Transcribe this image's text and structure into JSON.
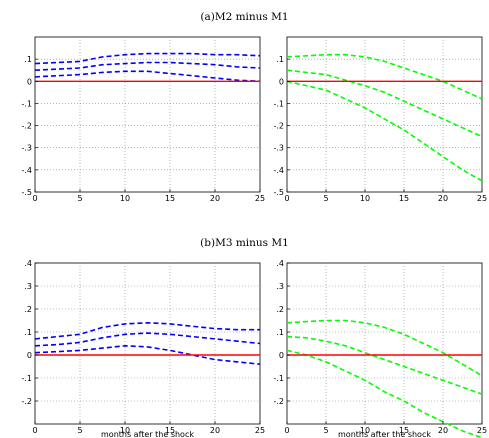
{
  "figure": {
    "panel_titles": [
      "(a)M2  minus  M1",
      "(b)M3  minus  M1"
    ],
    "xlabel": "months after the shock"
  },
  "chart_data": [
    {
      "type": "line",
      "panel": "(a)M2  minus  M1",
      "position": "left",
      "x": [
        0,
        2.5,
        5,
        7.5,
        10,
        12.5,
        15,
        17.5,
        20,
        22.5,
        25
      ],
      "xlim": [
        0,
        25
      ],
      "ylim": [
        -0.5,
        0.2
      ],
      "xticks": [
        0,
        5,
        10,
        15,
        20,
        25
      ],
      "yticks": [
        -0.5,
        -0.4,
        -0.3,
        -0.2,
        -0.1,
        0,
        0.1
      ],
      "grid": true,
      "xlabel": "",
      "series": [
        {
          "values": [
            0.08,
            0.085,
            0.09,
            0.11,
            0.12,
            0.125,
            0.125,
            0.125,
            0.12,
            0.12,
            0.115
          ],
          "color": "#0000ff",
          "style": "dashed"
        },
        {
          "values": [
            0.05,
            0.055,
            0.06,
            0.075,
            0.08,
            0.085,
            0.085,
            0.08,
            0.075,
            0.065,
            0.06
          ],
          "color": "#0000ff",
          "style": "dashed"
        },
        {
          "values": [
            0.02,
            0.025,
            0.03,
            0.04,
            0.045,
            0.045,
            0.035,
            0.025,
            0.015,
            0.005,
            0.0
          ],
          "color": "#0000ff",
          "style": "dashed"
        },
        {
          "values": [
            0,
            0,
            0,
            0,
            0,
            0,
            0,
            0,
            0,
            0,
            0
          ],
          "color": "#ff0000",
          "style": "solid"
        }
      ]
    },
    {
      "type": "line",
      "panel": "(a)M2  minus  M1",
      "position": "right",
      "x": [
        0,
        2.5,
        5,
        7.5,
        10,
        12.5,
        15,
        17.5,
        20,
        22.5,
        25
      ],
      "xlim": [
        0,
        25
      ],
      "ylim": [
        -0.5,
        0.2
      ],
      "xticks": [
        0,
        5,
        10,
        15,
        20,
        25
      ],
      "yticks": [
        -0.5,
        -0.4,
        -0.3,
        -0.2,
        -0.1,
        0,
        0.1
      ],
      "grid": true,
      "xlabel": "",
      "series": [
        {
          "values": [
            0.11,
            0.115,
            0.12,
            0.12,
            0.11,
            0.09,
            0.06,
            0.03,
            0.0,
            -0.04,
            -0.08
          ],
          "color": "#00ff00",
          "style": "dashed"
        },
        {
          "values": [
            0.05,
            0.04,
            0.03,
            0.005,
            -0.02,
            -0.05,
            -0.09,
            -0.13,
            -0.17,
            -0.21,
            -0.25
          ],
          "color": "#00ff00",
          "style": "dashed"
        },
        {
          "values": [
            0.0,
            -0.02,
            -0.04,
            -0.08,
            -0.12,
            -0.17,
            -0.22,
            -0.28,
            -0.34,
            -0.4,
            -0.45
          ],
          "color": "#00ff00",
          "style": "dashed"
        },
        {
          "values": [
            0,
            0,
            0,
            0,
            0,
            0,
            0,
            0,
            0,
            0,
            0
          ],
          "color": "#ff0000",
          "style": "solid"
        }
      ]
    },
    {
      "type": "line",
      "panel": "(b)M3  minus  M1",
      "position": "left",
      "x": [
        0,
        2.5,
        5,
        7.5,
        10,
        12.5,
        15,
        17.5,
        20,
        22.5,
        25
      ],
      "xlim": [
        0,
        25
      ],
      "ylim": [
        -0.3,
        0.4
      ],
      "xticks": [
        0,
        5,
        10,
        15,
        20,
        25
      ],
      "yticks": [
        -0.2,
        -0.1,
        0,
        0.1,
        0.2,
        0.3,
        0.4
      ],
      "grid": true,
      "xlabel": "months after the shock",
      "series": [
        {
          "values": [
            0.07,
            0.08,
            0.09,
            0.12,
            0.135,
            0.14,
            0.135,
            0.125,
            0.115,
            0.11,
            0.11
          ],
          "color": "#0000ff",
          "style": "dashed"
        },
        {
          "values": [
            0.04,
            0.045,
            0.055,
            0.075,
            0.09,
            0.095,
            0.09,
            0.08,
            0.07,
            0.06,
            0.05
          ],
          "color": "#0000ff",
          "style": "dashed"
        },
        {
          "values": [
            0.01,
            0.015,
            0.02,
            0.03,
            0.04,
            0.035,
            0.02,
            0.0,
            -0.02,
            -0.03,
            -0.04
          ],
          "color": "#0000ff",
          "style": "dashed"
        },
        {
          "values": [
            0,
            0,
            0,
            0,
            0,
            0,
            0,
            0,
            0,
            0,
            0
          ],
          "color": "#ff0000",
          "style": "solid"
        }
      ]
    },
    {
      "type": "line",
      "panel": "(b)M3  minus  M1",
      "position": "right",
      "x": [
        0,
        2.5,
        5,
        7.5,
        10,
        12.5,
        15,
        17.5,
        20,
        22.5,
        25
      ],
      "xlim": [
        0,
        25
      ],
      "ylim": [
        -0.3,
        0.4
      ],
      "xticks": [
        0,
        5,
        10,
        15,
        20,
        25
      ],
      "yticks": [
        -0.2,
        -0.1,
        0,
        0.1,
        0.2,
        0.3,
        0.4
      ],
      "grid": true,
      "xlabel": "months after the shock",
      "series": [
        {
          "values": [
            0.14,
            0.145,
            0.15,
            0.15,
            0.14,
            0.12,
            0.09,
            0.05,
            0.01,
            -0.04,
            -0.09
          ],
          "color": "#00ff00",
          "style": "dashed"
        },
        {
          "values": [
            0.08,
            0.075,
            0.06,
            0.04,
            0.01,
            -0.02,
            -0.05,
            -0.08,
            -0.11,
            -0.14,
            -0.17
          ],
          "color": "#00ff00",
          "style": "dashed"
        },
        {
          "values": [
            0.02,
            0.0,
            -0.03,
            -0.07,
            -0.11,
            -0.16,
            -0.2,
            -0.25,
            -0.29,
            -0.33,
            -0.36
          ],
          "color": "#00ff00",
          "style": "dashed"
        },
        {
          "values": [
            0,
            0,
            0,
            0,
            0,
            0,
            0,
            0,
            0,
            0,
            0
          ],
          "color": "#ff0000",
          "style": "solid"
        }
      ]
    }
  ]
}
